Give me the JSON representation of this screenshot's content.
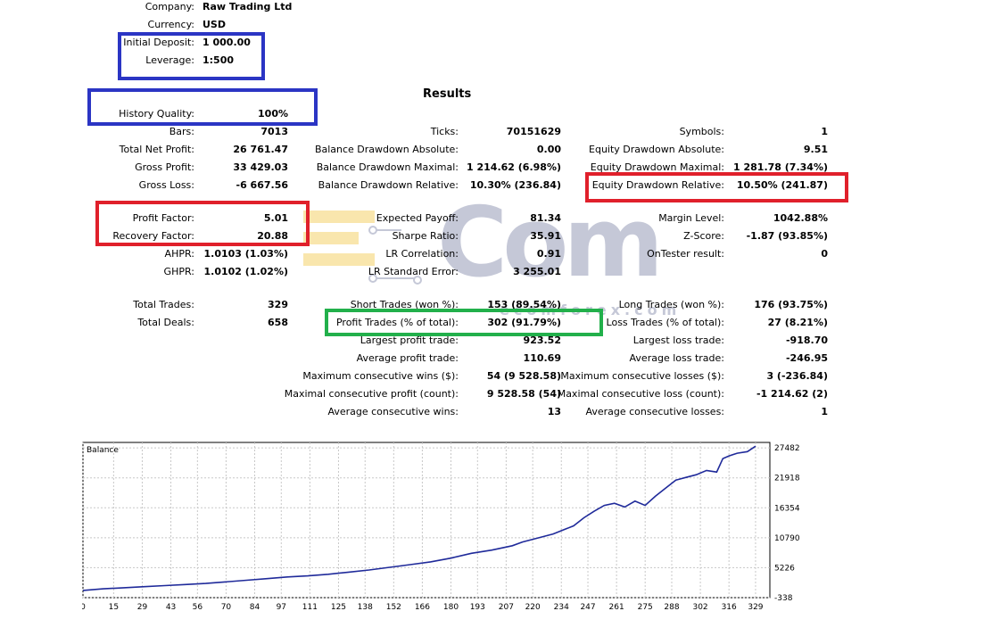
{
  "header": {
    "company_label": "Company:",
    "company_value": "Raw Trading Ltd",
    "currency_label": "Currency:",
    "currency_value": "USD",
    "deposit_label": "Initial Deposit:",
    "deposit_value": "1 000.00",
    "leverage_label": "Leverage:",
    "leverage_value": "1:500"
  },
  "results_title": "Results",
  "col1": [
    {
      "label": "History Quality:",
      "value": "100%"
    },
    {
      "label": "Bars:",
      "value": "7013"
    },
    {
      "label": "Total Net Profit:",
      "value": "26 761.47"
    },
    {
      "label": "Gross Profit:",
      "value": "33 429.03"
    },
    {
      "label": "Gross Loss:",
      "value": "-6 667.56"
    },
    {
      "label": "Profit Factor:",
      "value": "5.01"
    },
    {
      "label": "Recovery Factor:",
      "value": "20.88"
    },
    {
      "label": "AHPR:",
      "value": "1.0103 (1.03%)"
    },
    {
      "label": "GHPR:",
      "value": "1.0102 (1.02%)"
    },
    {
      "label": "Total Trades:",
      "value": "329"
    },
    {
      "label": "Total Deals:",
      "value": "658"
    }
  ],
  "col2": [
    {
      "label": "Ticks:",
      "value": "70151629"
    },
    {
      "label": "Balance Drawdown Absolute:",
      "value": "0.00"
    },
    {
      "label": "Balance Drawdown Maximal:",
      "value": "1 214.62 (6.98%)"
    },
    {
      "label": "Balance Drawdown Relative:",
      "value": "10.30% (236.84)"
    },
    {
      "label": "Expected Payoff:",
      "value": "81.34"
    },
    {
      "label": "Sharpe Ratio:",
      "value": "35.91"
    },
    {
      "label": "LR Correlation:",
      "value": "0.91"
    },
    {
      "label": "LR Standard Error:",
      "value": "3 255.01"
    },
    {
      "label": "Short Trades (won %):",
      "value": "153 (89.54%)"
    },
    {
      "label": "Profit Trades (% of total):",
      "value": "302 (91.79%)"
    },
    {
      "label": "Largest profit trade:",
      "value": "923.52"
    },
    {
      "label": "Average profit trade:",
      "value": "110.69"
    },
    {
      "label": "Maximum consecutive wins ($):",
      "value": "54 (9 528.58)"
    },
    {
      "label": "Maximal consecutive profit (count):",
      "value": "9 528.58 (54)"
    },
    {
      "label": "Average consecutive wins:",
      "value": "13"
    }
  ],
  "col3": [
    {
      "label": "Symbols:",
      "value": "1"
    },
    {
      "label": "Equity Drawdown Absolute:",
      "value": "9.51"
    },
    {
      "label": "Equity Drawdown Maximal:",
      "value": "1 281.78 (7.34%)"
    },
    {
      "label": "Equity Drawdown Relative:",
      "value": "10.50% (241.87)"
    },
    {
      "label": "Margin Level:",
      "value": "1042.88%"
    },
    {
      "label": "Z-Score:",
      "value": "-1.87 (93.85%)"
    },
    {
      "label": "OnTester result:",
      "value": "0"
    },
    {
      "label": "Long Trades (won %):",
      "value": "176 (93.75%)"
    },
    {
      "label": "Loss Trades (% of total):",
      "value": "27 (8.21%)"
    },
    {
      "label": "Largest loss trade:",
      "value": "-918.70"
    },
    {
      "label": "Average loss trade:",
      "value": "-246.95"
    },
    {
      "label": "Maximum consecutive losses ($):",
      "value": "3 (-236.84)"
    },
    {
      "label": "Maximal consecutive loss (count):",
      "value": "-1 214.62 (2)"
    },
    {
      "label": "Average consecutive losses:",
      "value": "1"
    }
  ],
  "watermark": {
    "big": "Com",
    "small": "ecomforex.com"
  },
  "highlight_colors": {
    "blue": "#2b35c4",
    "red": "#e0202b",
    "green": "#22b04b"
  },
  "chart_data": {
    "type": "line",
    "title": "Balance",
    "line_color": "#1f2a9a",
    "x_ticks": [
      0,
      15,
      29,
      43,
      56,
      70,
      84,
      97,
      111,
      125,
      138,
      152,
      166,
      180,
      193,
      207,
      220,
      234,
      247,
      261,
      275,
      288,
      302,
      316,
      329
    ],
    "y_ticks": [
      -338,
      5226,
      10790,
      16354,
      21918,
      27482
    ],
    "xlim": [
      0,
      336
    ],
    "ylim": [
      -338,
      28500
    ],
    "series": [
      {
        "x": [
          0,
          10,
          20,
          30,
          40,
          50,
          60,
          70,
          80,
          90,
          100,
          110,
          120,
          130,
          140,
          150,
          160,
          170,
          180,
          190,
          200,
          210,
          215,
          220,
          230,
          240,
          245,
          250,
          255,
          260,
          265,
          270,
          275,
          280,
          285,
          290,
          295,
          300,
          305,
          310,
          313,
          316,
          320,
          325,
          329
        ],
        "y": [
          1000,
          1300,
          1500,
          1700,
          1900,
          2100,
          2300,
          2600,
          2900,
          3200,
          3500,
          3700,
          4000,
          4400,
          4800,
          5300,
          5800,
          6300,
          7000,
          7900,
          8500,
          9300,
          10000,
          10500,
          11500,
          13000,
          14500,
          15700,
          16800,
          17200,
          16500,
          17600,
          16800,
          18500,
          20000,
          21500,
          22000,
          22500,
          23300,
          23000,
          25500,
          26000,
          26500,
          26800,
          27800
        ]
      }
    ]
  }
}
